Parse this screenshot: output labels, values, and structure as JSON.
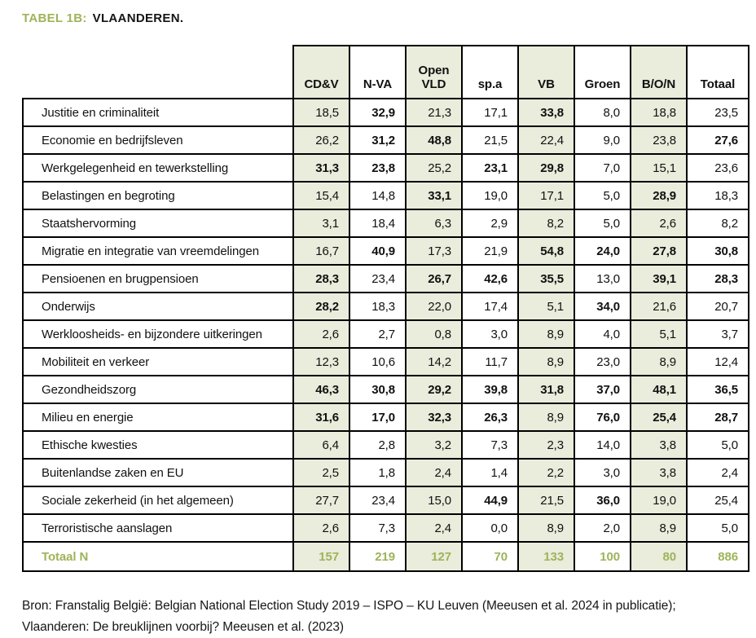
{
  "title": {
    "prefix": "TABEL 1B:",
    "name": "VLAANDEREN."
  },
  "colors": {
    "accent_green": "#9db459",
    "shaded_column": "#eaecdc",
    "border": "#000000"
  },
  "footer": {
    "line1": "Bron: Franstalig België: Belgian National Election Study 2019 – ISPO – KU Leuven (Meeusen et al. 2024 in publicatie);",
    "line2": "Vlaanderen: De breuklijnen voorbij? Meeusen et al. (2023)"
  },
  "chart_data": {
    "type": "table",
    "columns": [
      "CD&V",
      "N-VA",
      "Open VLD",
      "sp.a",
      "VB",
      "Groen",
      "B/O/N",
      "Totaal"
    ],
    "shaded_columns": [
      0,
      2,
      4,
      6
    ],
    "rows": [
      {
        "label": "Justitie en criminaliteit",
        "values": [
          "18,5",
          "32,9",
          "21,3",
          "17,1",
          "33,8",
          "8,0",
          "18,8",
          "23,5"
        ],
        "bold": [
          1,
          4
        ]
      },
      {
        "label": "Economie en bedrijfsleven",
        "values": [
          "26,2",
          "31,2",
          "48,8",
          "21,5",
          "22,4",
          "9,0",
          "23,8",
          "27,6"
        ],
        "bold": [
          1,
          2,
          7
        ]
      },
      {
        "label": "Werkgelegenheid en tewerkstelling",
        "values": [
          "31,3",
          "23,8",
          "25,2",
          "23,1",
          "29,8",
          "7,0",
          "15,1",
          "23,6"
        ],
        "bold": [
          0,
          1,
          3,
          4
        ]
      },
      {
        "label": "Belastingen en begroting",
        "values": [
          "15,4",
          "14,8",
          "33,1",
          "19,0",
          "17,1",
          "5,0",
          "28,9",
          "18,3"
        ],
        "bold": [
          2,
          6
        ]
      },
      {
        "label": "Staatshervorming",
        "values": [
          "3,1",
          "18,4",
          "6,3",
          "2,9",
          "8,2",
          "5,0",
          "2,6",
          "8,2"
        ],
        "bold": []
      },
      {
        "label": "Migratie en integratie van vreemdelingen",
        "values": [
          "16,7",
          "40,9",
          "17,3",
          "21,9",
          "54,8",
          "24,0",
          "27,8",
          "30,8"
        ],
        "bold": [
          1,
          4,
          5,
          6,
          7
        ]
      },
      {
        "label": "Pensioenen en brugpensioen",
        "values": [
          "28,3",
          "23,4",
          "26,7",
          "42,6",
          "35,5",
          "13,0",
          "39,1",
          "28,3"
        ],
        "bold": [
          0,
          2,
          3,
          4,
          6,
          7
        ]
      },
      {
        "label": "Onderwijs",
        "values": [
          "28,2",
          "18,3",
          "22,0",
          "17,4",
          "5,1",
          "34,0",
          "21,6",
          "20,7"
        ],
        "bold": [
          0,
          5
        ]
      },
      {
        "label": "Werkloosheids- en bijzondere uitkeringen",
        "values": [
          "2,6",
          "2,7",
          "0,8",
          "3,0",
          "8,9",
          "4,0",
          "5,1",
          "3,7"
        ],
        "bold": []
      },
      {
        "label": "Mobiliteit en verkeer",
        "values": [
          "12,3",
          "10,6",
          "14,2",
          "11,7",
          "8,9",
          "23,0",
          "8,9",
          "12,4"
        ],
        "bold": []
      },
      {
        "label": "Gezondheidszorg",
        "values": [
          "46,3",
          "30,8",
          "29,2",
          "39,8",
          "31,8",
          "37,0",
          "48,1",
          "36,5"
        ],
        "bold": [
          0,
          1,
          2,
          3,
          4,
          5,
          6,
          7
        ]
      },
      {
        "label": "Milieu en energie",
        "values": [
          "31,6",
          "17,0",
          "32,3",
          "26,3",
          "8,9",
          "76,0",
          "25,4",
          "28,7"
        ],
        "bold": [
          0,
          1,
          2,
          3,
          5,
          6,
          7
        ]
      },
      {
        "label": "Ethische kwesties",
        "values": [
          "6,4",
          "2,8",
          "3,2",
          "7,3",
          "2,3",
          "14,0",
          "3,8",
          "5,0"
        ],
        "bold": []
      },
      {
        "label": "Buitenlandse zaken en EU",
        "values": [
          "2,5",
          "1,8",
          "2,4",
          "1,4",
          "2,2",
          "3,0",
          "3,8",
          "2,4"
        ],
        "bold": []
      },
      {
        "label": "Sociale zekerheid (in het algemeen)",
        "values": [
          "27,7",
          "23,4",
          "15,0",
          "44,9",
          "21,5",
          "36,0",
          "19,0",
          "25,4"
        ],
        "bold": [
          3,
          5
        ]
      },
      {
        "label": "Terroristische aanslagen",
        "values": [
          "2,6",
          "7,3",
          "2,4",
          "0,0",
          "8,9",
          "2,0",
          "8,9",
          "5,0"
        ],
        "bold": []
      }
    ],
    "total_row": {
      "label": "Totaal N",
      "values": [
        "157",
        "219",
        "127",
        "70",
        "133",
        "100",
        "80",
        "886"
      ]
    }
  }
}
